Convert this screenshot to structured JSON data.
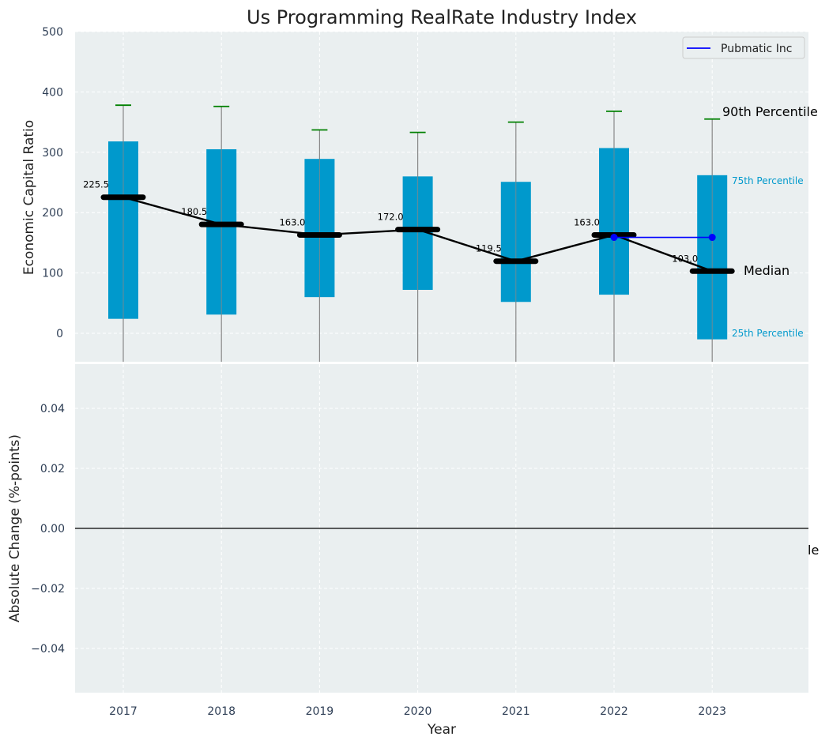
{
  "chart_data": {
    "type": "box",
    "title": "Us Programming RealRate Industry Index",
    "xlabel": "Year",
    "top_panel": {
      "ylabel": "Economic Capital Ratio",
      "ylim": [
        -50,
        500
      ],
      "yticks": [
        "0",
        "100",
        "200",
        "300",
        "400",
        "500"
      ],
      "grid": true,
      "categories": [
        "2017",
        "2018",
        "2019",
        "2020",
        "2021",
        "2022",
        "2023"
      ],
      "p25": [
        24,
        31,
        60,
        72,
        52,
        64,
        -10
      ],
      "p75": [
        318,
        305,
        289,
        260,
        251,
        307,
        262
      ],
      "p90": [
        378,
        376,
        337,
        333,
        350,
        368,
        355
      ],
      "median": [
        225.5,
        180.5,
        163.0,
        172.0,
        119.5,
        163.0,
        103.0
      ],
      "median_labels": [
        "225.5",
        "180.5",
        "163.0",
        "172.0",
        "119.5",
        "163.0",
        "103.0"
      ],
      "company": {
        "name": "Pubmatic Inc",
        "x": [
          "2022",
          "2023"
        ],
        "values": [
          159,
          159
        ]
      },
      "annotations": {
        "p90": "90th Percentile",
        "p75": "75th Percentile",
        "median": "Median",
        "p25": "25th Percentile"
      },
      "legend_position": "top-right"
    },
    "bottom_panel": {
      "ylabel": "Absolute Change (%-points)",
      "ylim": [
        -0.055,
        0.055
      ],
      "yticks": [
        "−0.04",
        "−0.02",
        "0.00",
        "0.02",
        "0.04"
      ],
      "grid": true,
      "cutoff_text": "le"
    }
  },
  "colors": {
    "box": "#0099cc",
    "whisker": "#888888",
    "cap": "#008000",
    "median": "#000000",
    "company": "#0000ff",
    "panel_bg": "#eaeff0",
    "grid": "#ffffff"
  }
}
